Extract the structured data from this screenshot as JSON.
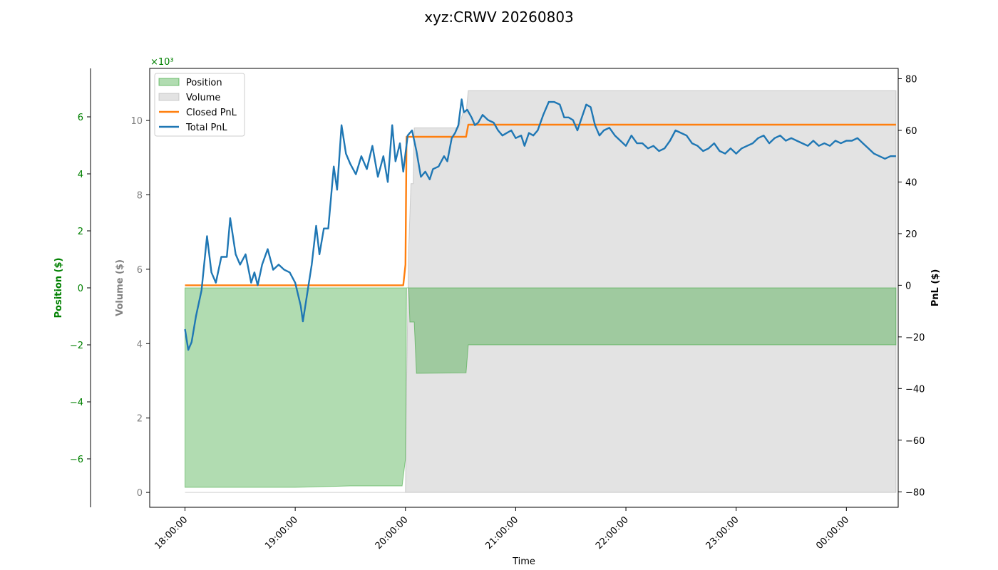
{
  "chart_data": {
    "type": "line",
    "title": "xyz:CRWV 20260803",
    "xlabel": "Time",
    "x_ticks": [
      "18:00:00",
      "19:00:00",
      "20:00:00",
      "21:00:00",
      "22:00:00",
      "23:00:00",
      "00:00:00"
    ],
    "x_range_hours": [
      17.68,
      24.47
    ],
    "position_axis": {
      "label": "Position ($)",
      "multiplier": "×10³",
      "ylim": [
        -7.7,
        7.7
      ],
      "ticks": [
        -6,
        -4,
        -2,
        0,
        2,
        4,
        6
      ],
      "color": "#008000"
    },
    "volume_axis": {
      "label": "Volume ($)",
      "ylim": [
        -0.4,
        11.4
      ],
      "ticks": [
        0,
        2,
        4,
        6,
        8,
        10
      ],
      "color": "#808080"
    },
    "pnl_axis": {
      "label": "PnL ($)",
      "ylim": [
        -86,
        84
      ],
      "ticks": [
        -80,
        -60,
        -40,
        -20,
        0,
        20,
        40,
        60,
        80
      ],
      "color": "#000000"
    },
    "legend": {
      "position": "upper left",
      "entries": [
        "Position",
        "Volume",
        "Closed PnL",
        "Total PnL"
      ]
    },
    "colors": {
      "position": "#2ca02c",
      "volume": "#c8c8c8",
      "closed_pnl": "#ff7f0e",
      "total_pnl": "#1f77b4"
    },
    "series": [
      {
        "name": "Position",
        "kind": "area",
        "axis": "position",
        "points": [
          [
            18.0,
            -7.0
          ],
          [
            19.0,
            -7.0
          ],
          [
            19.5,
            -6.95
          ],
          [
            19.97,
            -6.95
          ],
          [
            20.0,
            -6.0
          ],
          [
            20.01,
            0.0
          ],
          [
            20.03,
            0.0
          ],
          [
            20.04,
            -1.2
          ],
          [
            20.08,
            -1.2
          ],
          [
            20.1,
            -3.0
          ],
          [
            20.55,
            -2.98
          ],
          [
            20.57,
            -2.0
          ],
          [
            24.45,
            -2.0
          ]
        ]
      },
      {
        "name": "Volume",
        "kind": "area",
        "axis": "volume",
        "points": [
          [
            18.0,
            0.0
          ],
          [
            20.0,
            0.0
          ],
          [
            20.01,
            2.9
          ],
          [
            20.03,
            6.6
          ],
          [
            20.05,
            8.3
          ],
          [
            20.07,
            8.3
          ],
          [
            20.08,
            9.8
          ],
          [
            20.48,
            9.8
          ],
          [
            20.52,
            10.2
          ],
          [
            20.55,
            10.2
          ],
          [
            20.57,
            10.8
          ],
          [
            24.45,
            10.8
          ]
        ]
      },
      {
        "name": "Closed PnL",
        "kind": "line",
        "axis": "pnl",
        "points": [
          [
            18.0,
            0.0
          ],
          [
            19.98,
            0.0
          ],
          [
            20.0,
            8.0
          ],
          [
            20.01,
            57.5
          ],
          [
            20.55,
            57.5
          ],
          [
            20.57,
            62.2
          ],
          [
            24.45,
            62.2
          ]
        ]
      },
      {
        "name": "Total PnL",
        "kind": "line",
        "axis": "pnl",
        "points": [
          [
            18.0,
            -17
          ],
          [
            18.03,
            -25
          ],
          [
            18.06,
            -22
          ],
          [
            18.1,
            -12
          ],
          [
            18.15,
            -2
          ],
          [
            18.2,
            19
          ],
          [
            18.24,
            5
          ],
          [
            18.28,
            1
          ],
          [
            18.33,
            11
          ],
          [
            18.38,
            11
          ],
          [
            18.41,
            26
          ],
          [
            18.46,
            12
          ],
          [
            18.5,
            8
          ],
          [
            18.55,
            12
          ],
          [
            18.6,
            1
          ],
          [
            18.63,
            5
          ],
          [
            18.66,
            0
          ],
          [
            18.7,
            8
          ],
          [
            18.75,
            14
          ],
          [
            18.8,
            6
          ],
          [
            18.85,
            8
          ],
          [
            18.9,
            6
          ],
          [
            18.95,
            5
          ],
          [
            19.0,
            1
          ],
          [
            19.05,
            -8
          ],
          [
            19.07,
            -14
          ],
          [
            19.11,
            -3
          ],
          [
            19.15,
            8
          ],
          [
            19.19,
            23
          ],
          [
            19.22,
            12
          ],
          [
            19.26,
            22
          ],
          [
            19.3,
            22
          ],
          [
            19.35,
            46
          ],
          [
            19.38,
            37
          ],
          [
            19.42,
            62
          ],
          [
            19.46,
            51
          ],
          [
            19.5,
            47
          ],
          [
            19.55,
            43
          ],
          [
            19.6,
            50
          ],
          [
            19.65,
            45
          ],
          [
            19.7,
            54
          ],
          [
            19.75,
            42
          ],
          [
            19.8,
            50
          ],
          [
            19.84,
            40
          ],
          [
            19.88,
            62
          ],
          [
            19.91,
            48
          ],
          [
            19.95,
            55
          ],
          [
            19.98,
            44
          ],
          [
            20.02,
            58
          ],
          [
            20.06,
            60
          ],
          [
            20.1,
            52
          ],
          [
            20.14,
            42
          ],
          [
            20.18,
            44
          ],
          [
            20.22,
            41
          ],
          [
            20.25,
            45
          ],
          [
            20.3,
            46
          ],
          [
            20.35,
            50
          ],
          [
            20.38,
            48
          ],
          [
            20.42,
            57
          ],
          [
            20.45,
            59
          ],
          [
            20.48,
            62
          ],
          [
            20.51,
            72
          ],
          [
            20.53,
            67
          ],
          [
            20.56,
            68
          ],
          [
            20.6,
            65
          ],
          [
            20.63,
            62
          ],
          [
            20.66,
            63
          ],
          [
            20.7,
            66
          ],
          [
            20.75,
            64
          ],
          [
            20.8,
            63
          ],
          [
            20.84,
            60
          ],
          [
            20.88,
            58
          ],
          [
            20.92,
            59
          ],
          [
            20.96,
            60
          ],
          [
            21.0,
            57
          ],
          [
            21.05,
            58
          ],
          [
            21.08,
            54
          ],
          [
            21.12,
            59
          ],
          [
            21.16,
            58
          ],
          [
            21.2,
            60
          ],
          [
            21.25,
            66
          ],
          [
            21.3,
            71
          ],
          [
            21.35,
            71
          ],
          [
            21.4,
            70
          ],
          [
            21.44,
            65
          ],
          [
            21.48,
            65
          ],
          [
            21.52,
            64
          ],
          [
            21.56,
            60
          ],
          [
            21.6,
            65
          ],
          [
            21.64,
            70
          ],
          [
            21.68,
            69
          ],
          [
            21.72,
            62
          ],
          [
            21.76,
            58
          ],
          [
            21.8,
            60
          ],
          [
            21.85,
            61
          ],
          [
            21.9,
            58
          ],
          [
            21.95,
            56
          ],
          [
            22.0,
            54
          ],
          [
            22.05,
            58
          ],
          [
            22.1,
            55
          ],
          [
            22.15,
            55
          ],
          [
            22.2,
            53
          ],
          [
            22.25,
            54
          ],
          [
            22.3,
            52
          ],
          [
            22.35,
            53
          ],
          [
            22.4,
            56
          ],
          [
            22.45,
            60
          ],
          [
            22.5,
            59
          ],
          [
            22.55,
            58
          ],
          [
            22.6,
            55
          ],
          [
            22.65,
            54
          ],
          [
            22.7,
            52
          ],
          [
            22.75,
            53
          ],
          [
            22.8,
            55
          ],
          [
            22.85,
            52
          ],
          [
            22.9,
            51
          ],
          [
            22.95,
            53
          ],
          [
            23.0,
            51
          ],
          [
            23.05,
            53
          ],
          [
            23.1,
            54
          ],
          [
            23.15,
            55
          ],
          [
            23.2,
            57
          ],
          [
            23.25,
            58
          ],
          [
            23.3,
            55
          ],
          [
            23.35,
            57
          ],
          [
            23.4,
            58
          ],
          [
            23.45,
            56
          ],
          [
            23.5,
            57
          ],
          [
            23.55,
            56
          ],
          [
            23.6,
            55
          ],
          [
            23.65,
            54
          ],
          [
            23.7,
            56
          ],
          [
            23.75,
            54
          ],
          [
            23.8,
            55
          ],
          [
            23.85,
            54
          ],
          [
            23.9,
            56
          ],
          [
            23.95,
            55
          ],
          [
            24.0,
            56
          ],
          [
            24.05,
            56
          ],
          [
            24.1,
            57
          ],
          [
            24.15,
            55
          ],
          [
            24.2,
            53
          ],
          [
            24.25,
            51
          ],
          [
            24.3,
            50
          ],
          [
            24.35,
            49
          ],
          [
            24.4,
            50
          ],
          [
            24.45,
            50
          ]
        ]
      }
    ]
  }
}
